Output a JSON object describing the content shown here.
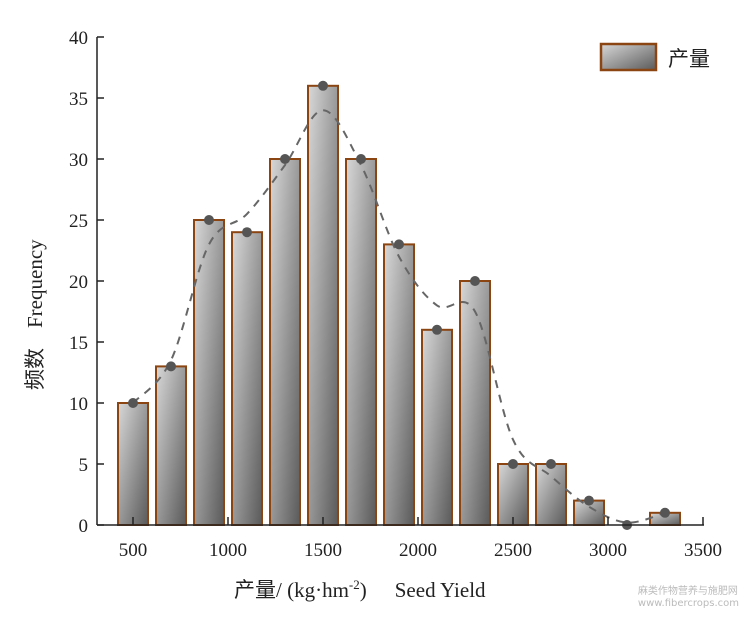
{
  "chart_data": {
    "type": "bar",
    "x": [
      500,
      700,
      900,
      1100,
      1300,
      1500,
      1700,
      1900,
      2100,
      2300,
      2500,
      2700,
      2900,
      3100,
      3300
    ],
    "series": [
      {
        "name": "产量",
        "values": [
          10,
          13,
          25,
          24,
          30,
          36,
          30,
          23,
          16,
          20,
          5,
          5,
          2,
          0,
          1
        ]
      }
    ],
    "curve": {
      "style": "dashed",
      "y": [
        10,
        13.5,
        23,
        25.5,
        29.5,
        34,
        29.5,
        22,
        18,
        17.5,
        7,
        4,
        1.5,
        0.2,
        1
      ]
    },
    "xlabel_cn": "产量/ (kg·hm",
    "xlabel_sup": "-2",
    "xlabel_close": ")",
    "xlabel_en": "Seed Yield",
    "ylabel_cn": "频数",
    "ylabel_en": "Frequency",
    "xlim": [
      310,
      3500
    ],
    "ylim": [
      0,
      40
    ],
    "xticks": [
      500,
      1000,
      1500,
      2000,
      2500,
      3000,
      3500
    ],
    "yticks": [
      0,
      5,
      10,
      15,
      20,
      25,
      30,
      35,
      40
    ],
    "legend": {
      "label": "产量",
      "placement": "top-right"
    },
    "grid": false,
    "colors": {
      "bar_edge": "#8b4513",
      "bar_light": "#d8d8d8",
      "bar_dark": "#5a5a5a",
      "point": "#555555",
      "curve": "#666666"
    }
  },
  "watermark": {
    "line1": "麻类作物营养与施肥网",
    "line2": "www.fibercrops.com"
  }
}
